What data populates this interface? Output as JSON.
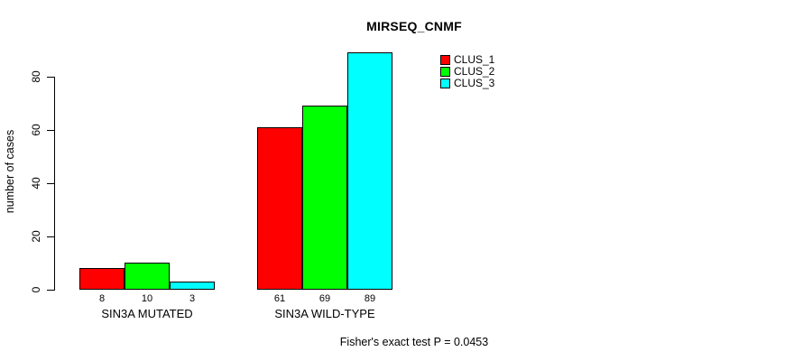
{
  "figure": {
    "background": "#ffffff",
    "text_color": "#000000"
  },
  "chart_data": {
    "type": "bar",
    "title": "MIRSEQ_CNMF",
    "ylabel": "number of cases",
    "xlabel": "",
    "categories": [
      "SIN3A MUTATED",
      "SIN3A WILD-TYPE"
    ],
    "series": [
      {
        "name": "CLUS_1",
        "color": "#ff0000",
        "values": [
          8,
          61
        ]
      },
      {
        "name": "CLUS_2",
        "color": "#00ff00",
        "values": [
          10,
          69
        ]
      },
      {
        "name": "CLUS_3",
        "color": "#00ffff",
        "values": [
          3,
          89
        ]
      }
    ],
    "bar_value_labels": [
      [
        8,
        10,
        3
      ],
      [
        61,
        69,
        89
      ]
    ],
    "yticks": [
      0,
      20,
      40,
      60,
      80
    ],
    "ylim": [
      0,
      89
    ],
    "grid": false,
    "legend_position": "top-right",
    "annotation": "Fisher's exact test P = 0.0453"
  }
}
